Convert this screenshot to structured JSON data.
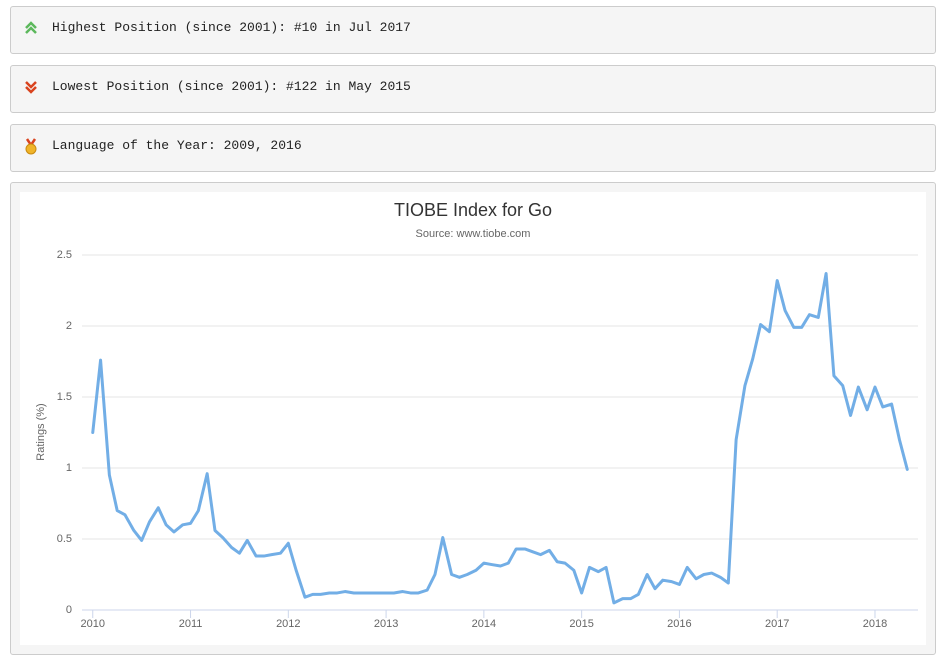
{
  "info": {
    "highest": "Highest Position (since 2001): #10 in Jul 2017",
    "lowest": "Lowest Position (since 2001): #122 in May 2015",
    "year": "Language of the Year: 2009, 2016"
  },
  "chart_data": {
    "type": "line",
    "title": "TIOBE Index for Go",
    "subtitle": "Source: www.tiobe.com",
    "y_label": "Ratings (%)",
    "xlim": [
      2009.89,
      2018.44
    ],
    "xticks": [
      2010,
      2011,
      2012,
      2013,
      2014,
      2015,
      2016,
      2017,
      2018
    ],
    "ylim": [
      0,
      2.5
    ],
    "yticks": [
      0,
      0.5,
      1,
      1.5,
      2,
      2.5
    ],
    "grid": true,
    "x": [
      2010,
      2010.08,
      2010.17,
      2010.25,
      2010.33,
      2010.42,
      2010.5,
      2010.58,
      2010.67,
      2010.75,
      2010.83,
      2010.92,
      2011,
      2011.08,
      2011.17,
      2011.25,
      2011.33,
      2011.42,
      2011.5,
      2011.58,
      2011.67,
      2011.75,
      2011.83,
      2011.92,
      2012,
      2012.08,
      2012.17,
      2012.25,
      2012.33,
      2012.42,
      2012.5,
      2012.58,
      2012.67,
      2012.75,
      2012.83,
      2012.92,
      2013,
      2013.08,
      2013.17,
      2013.25,
      2013.33,
      2013.42,
      2013.5,
      2013.58,
      2013.67,
      2013.75,
      2013.83,
      2013.92,
      2014,
      2014.08,
      2014.17,
      2014.25,
      2014.33,
      2014.42,
      2014.5,
      2014.58,
      2014.67,
      2014.75,
      2014.83,
      2014.92,
      2015,
      2015.08,
      2015.17,
      2015.25,
      2015.33,
      2015.42,
      2015.5,
      2015.58,
      2015.67,
      2015.75,
      2015.83,
      2015.92,
      2016,
      2016.08,
      2016.17,
      2016.25,
      2016.33,
      2016.42,
      2016.5,
      2016.58,
      2016.67,
      2016.75,
      2016.83,
      2016.92,
      2017,
      2017.08,
      2017.17,
      2017.25,
      2017.33,
      2017.42,
      2017.5,
      2017.58,
      2017.67,
      2017.75,
      2017.83,
      2017.92,
      2018,
      2018.08,
      2018.17,
      2018.25,
      2018.33
    ],
    "series": [
      {
        "name": "Go",
        "color": "#72aee6",
        "values": [
          1.25,
          1.76,
          0.95,
          0.7,
          0.67,
          0.56,
          0.49,
          0.62,
          0.72,
          0.6,
          0.55,
          0.6,
          0.61,
          0.7,
          0.96,
          0.56,
          0.51,
          0.44,
          0.4,
          0.49,
          0.38,
          0.38,
          0.39,
          0.4,
          0.47,
          0.28,
          0.09,
          0.11,
          0.11,
          0.12,
          0.12,
          0.13,
          0.12,
          0.12,
          0.12,
          0.12,
          0.12,
          0.12,
          0.13,
          0.12,
          0.12,
          0.14,
          0.25,
          0.51,
          0.25,
          0.23,
          0.25,
          0.28,
          0.33,
          0.32,
          0.31,
          0.33,
          0.43,
          0.43,
          0.41,
          0.39,
          0.42,
          0.34,
          0.33,
          0.28,
          0.12,
          0.3,
          0.27,
          0.3,
          0.05,
          0.08,
          0.08,
          0.11,
          0.25,
          0.15,
          0.21,
          0.2,
          0.18,
          0.3,
          0.22,
          0.25,
          0.26,
          0.23,
          0.19,
          1.2,
          1.58,
          1.77,
          2.01,
          1.96,
          2.32,
          2.11,
          1.99,
          1.99,
          2.08,
          2.06,
          2.37,
          1.65,
          1.58,
          1.37,
          1.57,
          1.41,
          1.57,
          1.43,
          1.45,
          1.2,
          0.99
        ]
      }
    ]
  }
}
